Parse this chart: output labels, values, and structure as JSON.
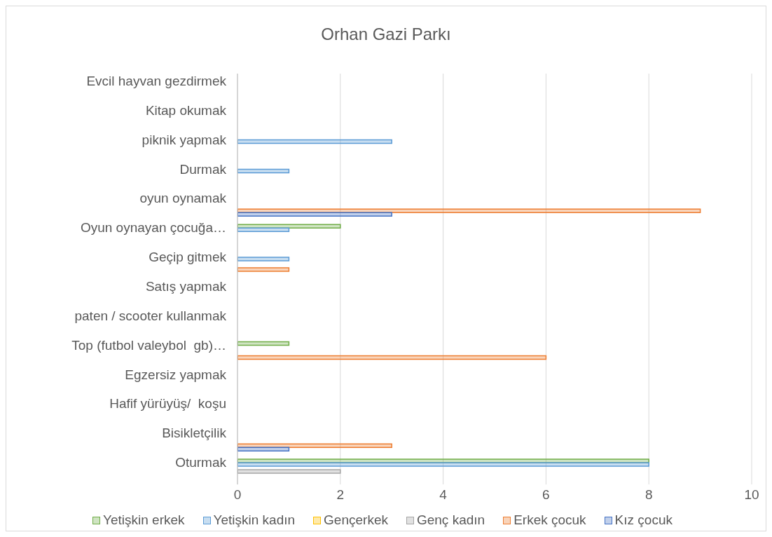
{
  "chart_data": {
    "type": "bar",
    "orientation": "horizontal",
    "title": "Orhan Gazi Parkı",
    "categories": [
      "Evcil hayvan gezdirmek",
      "Kitap okumak",
      "piknik yapmak",
      "Durmak",
      "oyun oynamak",
      "Oyun oynayan çocuğa…",
      "Geçip gitmek",
      "Satış yapmak",
      "paten / scooter kullanmak",
      "Top (futbol valeybol  gb)…",
      "Egzersiz yapmak",
      "Hafif yürüyüş/  koşu",
      "Bisikletçilik",
      "Oturmak"
    ],
    "series": [
      {
        "name": "Yetişkin erkek",
        "color": "#70ad47",
        "values": [
          null,
          null,
          null,
          null,
          null,
          2,
          null,
          null,
          null,
          1,
          null,
          null,
          null,
          8
        ]
      },
      {
        "name": "Yetişkin kadın",
        "color": "#5b9bd5",
        "values": [
          null,
          null,
          3,
          1,
          null,
          1,
          1,
          null,
          null,
          null,
          null,
          null,
          null,
          8
        ]
      },
      {
        "name": "Gençerkek",
        "color": "#ffc000",
        "values": [
          null,
          null,
          null,
          null,
          null,
          null,
          null,
          null,
          null,
          null,
          null,
          null,
          null,
          null
        ]
      },
      {
        "name": "Genç kadın",
        "color": "#a5a5a5",
        "values": [
          null,
          null,
          null,
          null,
          null,
          null,
          null,
          null,
          null,
          null,
          null,
          null,
          null,
          2
        ]
      },
      {
        "name": "Erkek çocuk",
        "color": "#ed7d31",
        "values": [
          null,
          null,
          null,
          null,
          9,
          null,
          1,
          null,
          null,
          6,
          null,
          null,
          3,
          null
        ]
      },
      {
        "name": "Kız çocuk",
        "color": "#4472c4",
        "values": [
          null,
          null,
          null,
          null,
          3,
          null,
          null,
          null,
          null,
          null,
          null,
          null,
          1,
          null
        ]
      }
    ],
    "xlim": [
      0,
      10
    ],
    "xticks": [
      0,
      2,
      4,
      6,
      8,
      10
    ],
    "grid": "x",
    "legend": "bottom"
  }
}
